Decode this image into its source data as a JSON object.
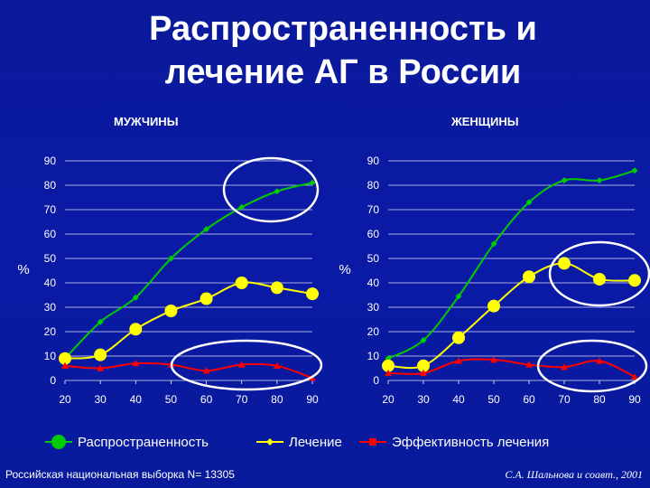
{
  "title_line1": "Распространенность и",
  "title_line2": "лечение АГ в России",
  "footer_left": "Российская национальная  выборка N= 13305",
  "footer_right": "С.А. Шальнова и соавт., 2001",
  "colors": {
    "prevalence": "#00cc00",
    "treatment": "#ffff00",
    "effectiveness": "#ff0000",
    "ellipse": "#ffffff"
  },
  "chart_data": [
    {
      "type": "line",
      "title": "МУЖЧИНЫ",
      "ylabel": "%",
      "x": [
        20,
        30,
        40,
        50,
        60,
        70,
        80,
        90
      ],
      "ylim": [
        0,
        90
      ],
      "yticks": [
        0,
        10,
        20,
        30,
        40,
        50,
        60,
        70,
        80,
        90
      ],
      "series": [
        {
          "name": "Распространенность",
          "values": [
            9,
            24,
            34,
            50,
            62,
            71,
            77.5,
            81
          ]
        },
        {
          "name": "Лечение",
          "values": [
            9,
            10.5,
            21,
            28.5,
            33.5,
            40,
            38,
            35.5
          ]
        },
        {
          "name": "Эффективность лечения",
          "values": [
            6,
            5,
            7,
            6.5,
            4,
            6.5,
            6,
            1
          ]
        }
      ]
    },
    {
      "type": "line",
      "title": "ЖЕНЩИНЫ",
      "ylabel": "%",
      "x": [
        20,
        30,
        40,
        50,
        60,
        70,
        80,
        90
      ],
      "ylim": [
        0,
        90
      ],
      "yticks": [
        0,
        10,
        20,
        30,
        40,
        50,
        60,
        70,
        80,
        90
      ],
      "series": [
        {
          "name": "Распространенность",
          "values": [
            9,
            16.5,
            34.5,
            56,
            73,
            82,
            82,
            86
          ]
        },
        {
          "name": "Лечение",
          "values": [
            6,
            6,
            17.5,
            30.5,
            42.5,
            48,
            41.5,
            41
          ]
        },
        {
          "name": "Эффективность лечения",
          "values": [
            3,
            3,
            8,
            8.5,
            6.5,
            5.5,
            8,
            1.5
          ]
        }
      ]
    }
  ]
}
